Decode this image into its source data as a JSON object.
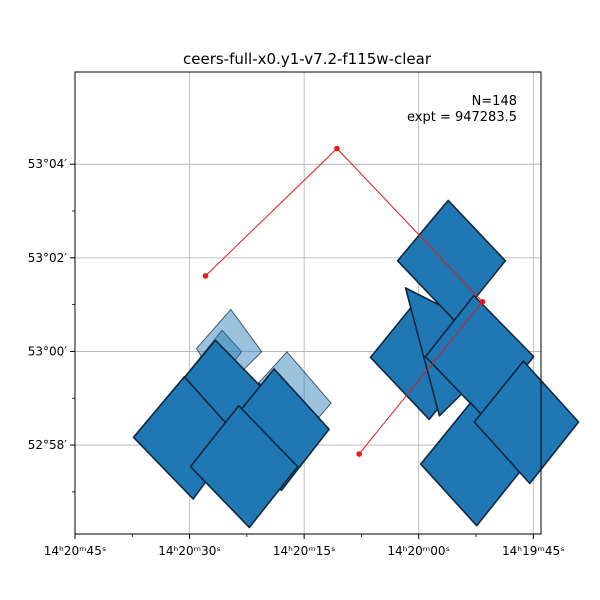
{
  "chart_data": {
    "type": "footprint-map",
    "title": "ceers-full-x0.y1-v7.2-f115w-clear",
    "xlabel": "",
    "ylabel": "",
    "grid": true,
    "annotation": {
      "lines": [
        "N=148",
        "expt = 947283.5"
      ],
      "placement": "top-right"
    },
    "x_axis": {
      "unit": "hours of right ascension",
      "direction": "decreasing to the right",
      "range": [
        215.1875,
        214.9333
      ],
      "major_ticks": [
        {
          "value": 215.1875,
          "label": "14ʰ20ᵐ45ˢ"
        },
        {
          "value": 215.125,
          "label": "14ʰ20ᵐ30ˢ"
        },
        {
          "value": 215.0625,
          "label": "14ʰ20ᵐ15ˢ"
        },
        {
          "value": 215.0,
          "label": "14ʰ20ᵐ00ˢ"
        },
        {
          "value": 214.9375,
          "label": "14ʰ19ᵐ45ˢ"
        }
      ],
      "minor_ticks": [
        215.15625,
        215.09375,
        215.03125,
        214.96875
      ]
    },
    "y_axis": {
      "unit": "degrees of declination",
      "range": [
        52.935,
        53.0995
      ],
      "major_ticks": [
        {
          "value": 52.96667,
          "label": "52°58′"
        },
        {
          "value": 53.0,
          "label": "53°00′"
        },
        {
          "value": 53.03333,
          "label": "53°02′"
        },
        {
          "value": 53.06667,
          "label": "53°04′"
        }
      ],
      "minor_ticks": [
        52.95,
        52.98333,
        53.01667,
        53.05
      ]
    },
    "polygon_path": {
      "color": "#e41a1c",
      "points": [
        [
          215.0325,
          52.96347
        ],
        [
          214.9652,
          53.01767
        ],
        [
          215.0446,
          53.07225
        ],
        [
          215.1163,
          53.02689
        ]
      ]
    },
    "footprints": [
      {
        "fill": "#1f77b4",
        "opacity": 1.0,
        "corners": [
          [
            215.0263,
            52.99788
          ],
          [
            214.9995,
            53.01941
          ],
          [
            214.9675,
            52.99744
          ],
          [
            214.9943,
            52.97582
          ]
        ]
      },
      {
        "fill": "#1f77b4",
        "opacity": 1.0,
        "corners": [
          [
            215.0072,
            53.02262
          ],
          [
            214.9789,
            53.01326
          ],
          [
            214.9549,
            52.99881
          ],
          [
            214.9887,
            52.97707
          ]
        ]
      },
      {
        "fill": "#1f77b4",
        "opacity": 1.0,
        "corners": [
          [
            215.0115,
            53.03227
          ],
          [
            214.9839,
            53.05379
          ],
          [
            214.9527,
            53.03227
          ],
          [
            214.9797,
            53.01044
          ]
        ]
      },
      {
        "fill": "#1f77b4",
        "opacity": 1.0,
        "corners": [
          [
            214.9963,
            52.99818
          ],
          [
            214.9699,
            53.01991
          ],
          [
            214.9373,
            52.99816
          ],
          [
            214.964,
            52.97622
          ]
        ]
      },
      {
        "fill": "#1f77b4",
        "opacity": 1.0,
        "corners": [
          [
            214.9989,
            52.9599
          ],
          [
            214.9717,
            52.9817
          ],
          [
            214.9413,
            52.96
          ],
          [
            214.9684,
            52.93795
          ]
        ]
      },
      {
        "fill": "#1f77b4",
        "opacity": 1.0,
        "corners": [
          [
            214.9697,
            52.97488
          ],
          [
            214.9429,
            52.99657
          ],
          [
            214.9128,
            52.97487
          ],
          [
            214.9394,
            52.95298
          ]
        ]
      },
      {
        "fill": "#1f77b4",
        "opacity": 0.45,
        "corners": [
          [
            215.1337,
            52.986
          ],
          [
            215.1073,
            53.00756
          ],
          [
            215.0966,
            52.99988
          ],
          [
            215.1221,
            52.97831
          ]
        ]
      },
      {
        "fill": "#1f77b4",
        "opacity": 0.45,
        "corners": [
          [
            215.1212,
            53.00107
          ],
          [
            215.1025,
            53.01496
          ],
          [
            215.0856,
            52.99988
          ],
          [
            215.1073,
            52.986
          ]
        ]
      },
      {
        "fill": "#1f77b4",
        "opacity": 0.45,
        "corners": [
          [
            215.1007,
            52.9786
          ],
          [
            215.0872,
            52.98889
          ],
          [
            215.0668,
            52.97002
          ],
          [
            215.0783,
            52.95982
          ]
        ]
      },
      {
        "fill": "#1f77b4",
        "opacity": 0.45,
        "corners": [
          [
            215.0872,
            52.98889
          ],
          [
            215.0719,
            52.99988
          ],
          [
            215.0478,
            52.98162
          ],
          [
            215.0626,
            52.97031
          ]
        ]
      },
      {
        "fill": "#1f77b4",
        "opacity": 0.45,
        "corners": [
          [
            215.1163,
            52.96316
          ],
          [
            215.0918,
            52.98513
          ],
          [
            215.0626,
            52.96347
          ],
          [
            215.0872,
            52.9422
          ]
        ]
      },
      {
        "fill": "#1f77b4",
        "opacity": 1.0,
        "corners": [
          [
            215.1383,
            52.98248
          ],
          [
            215.1109,
            53.004
          ],
          [
            215.0786,
            52.98248
          ],
          [
            215.1046,
            52.96066
          ]
        ]
      },
      {
        "fill": "#1f77b4",
        "opacity": 1.0,
        "corners": [
          [
            215.106,
            52.97201
          ],
          [
            215.0789,
            52.9938
          ],
          [
            215.0489,
            52.97227
          ],
          [
            215.0749,
            52.95051
          ]
        ]
      },
      {
        "fill": "#1f77b4",
        "opacity": 1.0,
        "corners": [
          [
            215.1556,
            52.96943
          ],
          [
            215.1279,
            52.99096
          ],
          [
            215.0982,
            52.96943
          ],
          [
            215.1231,
            52.94747
          ]
        ]
      },
      {
        "fill": "#1f77b4",
        "opacity": 1.0,
        "corners": [
          [
            215.1245,
            52.95901
          ],
          [
            215.0982,
            52.98066
          ],
          [
            215.0661,
            52.95901
          ],
          [
            215.0924,
            52.93732
          ]
        ]
      }
    ]
  }
}
